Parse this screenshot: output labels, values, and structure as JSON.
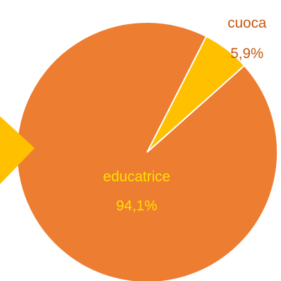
{
  "chart_data": {
    "type": "pie",
    "title": "",
    "slices": [
      {
        "label": "educatrice",
        "value": 94.1,
        "value_label": "94,1%",
        "color": "#ED7D31",
        "label_color": "#FFE000"
      },
      {
        "label": "cuoca",
        "value": 5.9,
        "value_label": "5,9%",
        "color": "#FFC000",
        "label_color": "#C55A11"
      }
    ],
    "exploded_slice": "cuoca",
    "slice_border_color": "#FFFFFF",
    "legend": "none"
  }
}
